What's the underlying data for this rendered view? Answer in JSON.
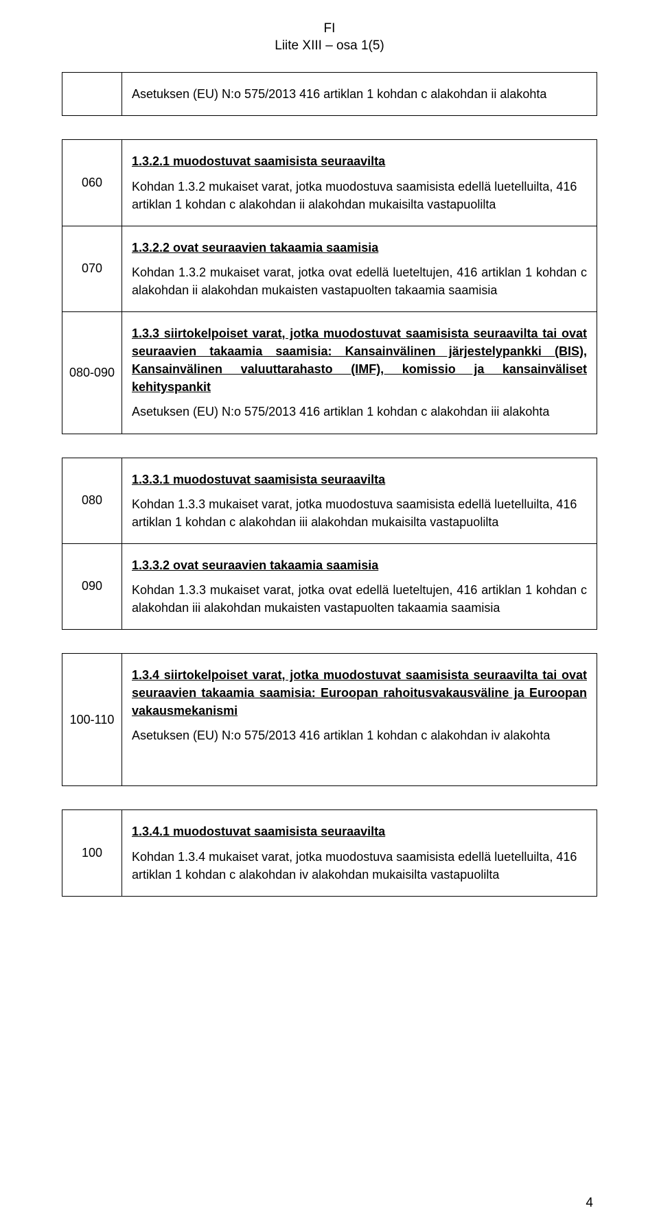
{
  "header": {
    "line1": "FI",
    "line2": "Liite XIII – osa 1(5)"
  },
  "rows": [
    {
      "code": "",
      "blocks": [
        {
          "type": "p",
          "text": "Asetuksen (EU) N:o 575/2013 416 artiklan 1 kohdan c alakohdan ii alakohta"
        }
      ]
    },
    {
      "code": "060",
      "blocks": [
        {
          "type": "title",
          "text": "1.3.2.1 muodostuvat saamisista seuraavilta"
        },
        {
          "type": "p",
          "text": "Kohdan 1.3.2 mukaiset varat, jotka muodostuva saamisista edellä luetelluilta, 416 artiklan 1 kohdan c alakohdan ii alakohdan mukaisilta vastapuolilta"
        }
      ]
    },
    {
      "code": "070",
      "blocks": [
        {
          "type": "title",
          "text": "1.3.2.2 ovat seuraavien takaamia saamisia"
        },
        {
          "type": "pj",
          "text": "Kohdan 1.3.2 mukaiset varat, jotka ovat edellä lueteltujen, 416 artiklan 1 kohdan c alakohdan ii alakohdan mukaisten vastapuolten takaamia saamisia"
        }
      ]
    },
    {
      "code": "080-090",
      "blocks": [
        {
          "type": "titlej",
          "text": "1.3.3 siirtokelpoiset varat, jotka muodostuvat saamisista seuraavilta tai ovat seuraavien takaamia saamisia: Kansainvälinen järjestelypankki (BIS), Kansainvälinen valuuttarahasto (IMF), komissio ja kansainväliset kehityspankit"
        },
        {
          "type": "p",
          "text": "Asetuksen (EU) N:o 575/2013 416 artiklan 1 kohdan c alakohdan iii alakohta"
        }
      ]
    },
    {
      "code": "080",
      "blocks": [
        {
          "type": "title",
          "text": "1.3.3.1 muodostuvat saamisista seuraavilta"
        },
        {
          "type": "p",
          "text": "Kohdan 1.3.3 mukaiset varat, jotka muodostuva saamisista edellä luetelluilta, 416 artiklan 1 kohdan c alakohdan iii alakohdan mukaisilta vastapuolilta"
        }
      ]
    },
    {
      "code": "090",
      "blocks": [
        {
          "type": "title",
          "text": "1.3.3.2 ovat seuraavien takaamia saamisia"
        },
        {
          "type": "pj",
          "text": "Kohdan 1.3.3 mukaiset varat, jotka ovat edellä lueteltujen, 416 artiklan 1 kohdan c alakohdan iii alakohdan mukaisten vastapuolten takaamia saamisia"
        }
      ]
    },
    {
      "code": "100-110",
      "tall": true,
      "blocks": [
        {
          "type": "titlej",
          "text": "1.3.4 siirtokelpoiset varat, jotka muodostuvat saamisista seuraavilta tai ovat seuraavien takaamia saamisia: Euroopan rahoitusvakausväline ja Euroopan vakausmekanismi"
        },
        {
          "type": "p",
          "text": "Asetuksen (EU) N:o 575/2013 416 artiklan 1 kohdan c alakohdan iv alakohta"
        }
      ]
    },
    {
      "code": "100",
      "blocks": [
        {
          "type": "title",
          "text": "1.3.4.1 muodostuvat saamisista seuraavilta"
        },
        {
          "type": "p",
          "text": "Kohdan 1.3.4 mukaiset varat, jotka muodostuva saamisista edellä luetelluilta, 416 artiklan 1 kohdan c alakohdan iv alakohdan mukaisilta vastapuolilta"
        }
      ]
    }
  ],
  "tableBreaks": [
    1,
    4,
    6,
    7
  ],
  "pageNumber": "4"
}
